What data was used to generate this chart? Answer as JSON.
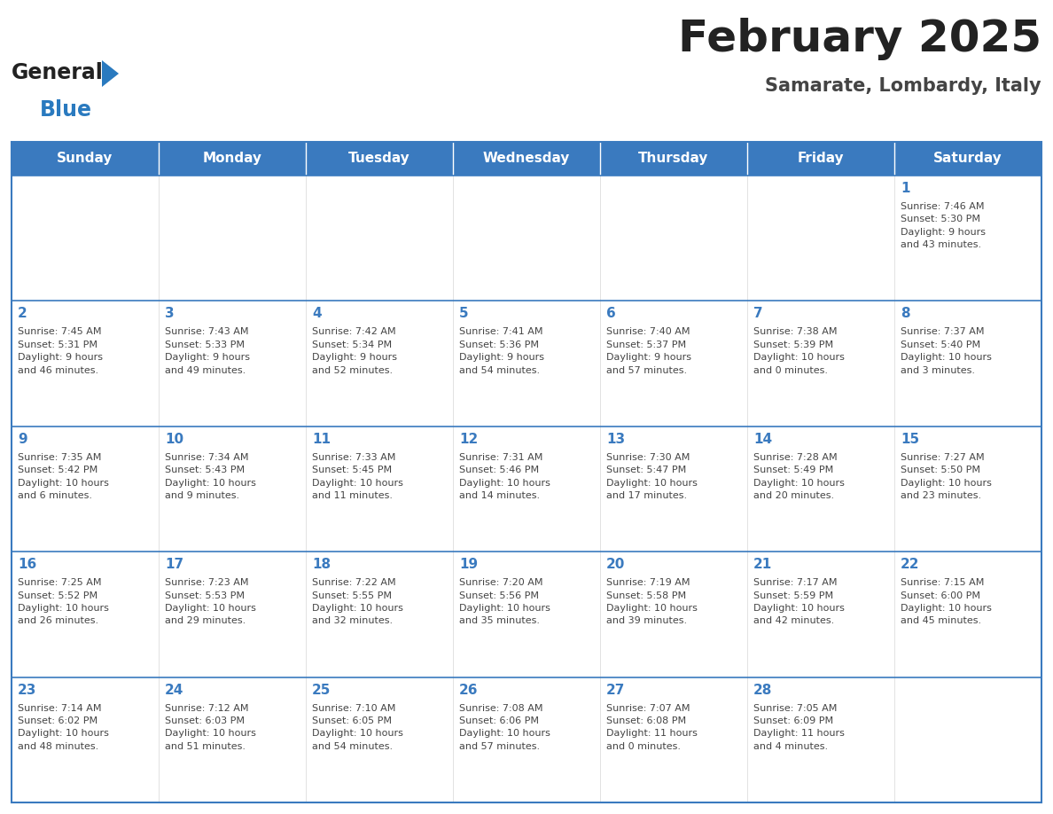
{
  "title": "February 2025",
  "subtitle": "Samarate, Lombardy, Italy",
  "days_of_week": [
    "Sunday",
    "Monday",
    "Tuesday",
    "Wednesday",
    "Thursday",
    "Friday",
    "Saturday"
  ],
  "header_bg": "#3a7abf",
  "header_text": "#ffffff",
  "cell_bg": "#ffffff",
  "border_color": "#3a7abf",
  "row_line_color": "#3a7abf",
  "text_color": "#444444",
  "day_number_color": "#3a7abf",
  "title_color": "#222222",
  "subtitle_color": "#444444",
  "logo_general_color": "#222222",
  "logo_blue_color": "#2a7abf",
  "calendar_data": [
    [
      {
        "day": null,
        "info": null
      },
      {
        "day": null,
        "info": null
      },
      {
        "day": null,
        "info": null
      },
      {
        "day": null,
        "info": null
      },
      {
        "day": null,
        "info": null
      },
      {
        "day": null,
        "info": null
      },
      {
        "day": 1,
        "info": "Sunrise: 7:46 AM\nSunset: 5:30 PM\nDaylight: 9 hours\nand 43 minutes."
      }
    ],
    [
      {
        "day": 2,
        "info": "Sunrise: 7:45 AM\nSunset: 5:31 PM\nDaylight: 9 hours\nand 46 minutes."
      },
      {
        "day": 3,
        "info": "Sunrise: 7:43 AM\nSunset: 5:33 PM\nDaylight: 9 hours\nand 49 minutes."
      },
      {
        "day": 4,
        "info": "Sunrise: 7:42 AM\nSunset: 5:34 PM\nDaylight: 9 hours\nand 52 minutes."
      },
      {
        "day": 5,
        "info": "Sunrise: 7:41 AM\nSunset: 5:36 PM\nDaylight: 9 hours\nand 54 minutes."
      },
      {
        "day": 6,
        "info": "Sunrise: 7:40 AM\nSunset: 5:37 PM\nDaylight: 9 hours\nand 57 minutes."
      },
      {
        "day": 7,
        "info": "Sunrise: 7:38 AM\nSunset: 5:39 PM\nDaylight: 10 hours\nand 0 minutes."
      },
      {
        "day": 8,
        "info": "Sunrise: 7:37 AM\nSunset: 5:40 PM\nDaylight: 10 hours\nand 3 minutes."
      }
    ],
    [
      {
        "day": 9,
        "info": "Sunrise: 7:35 AM\nSunset: 5:42 PM\nDaylight: 10 hours\nand 6 minutes."
      },
      {
        "day": 10,
        "info": "Sunrise: 7:34 AM\nSunset: 5:43 PM\nDaylight: 10 hours\nand 9 minutes."
      },
      {
        "day": 11,
        "info": "Sunrise: 7:33 AM\nSunset: 5:45 PM\nDaylight: 10 hours\nand 11 minutes."
      },
      {
        "day": 12,
        "info": "Sunrise: 7:31 AM\nSunset: 5:46 PM\nDaylight: 10 hours\nand 14 minutes."
      },
      {
        "day": 13,
        "info": "Sunrise: 7:30 AM\nSunset: 5:47 PM\nDaylight: 10 hours\nand 17 minutes."
      },
      {
        "day": 14,
        "info": "Sunrise: 7:28 AM\nSunset: 5:49 PM\nDaylight: 10 hours\nand 20 minutes."
      },
      {
        "day": 15,
        "info": "Sunrise: 7:27 AM\nSunset: 5:50 PM\nDaylight: 10 hours\nand 23 minutes."
      }
    ],
    [
      {
        "day": 16,
        "info": "Sunrise: 7:25 AM\nSunset: 5:52 PM\nDaylight: 10 hours\nand 26 minutes."
      },
      {
        "day": 17,
        "info": "Sunrise: 7:23 AM\nSunset: 5:53 PM\nDaylight: 10 hours\nand 29 minutes."
      },
      {
        "day": 18,
        "info": "Sunrise: 7:22 AM\nSunset: 5:55 PM\nDaylight: 10 hours\nand 32 minutes."
      },
      {
        "day": 19,
        "info": "Sunrise: 7:20 AM\nSunset: 5:56 PM\nDaylight: 10 hours\nand 35 minutes."
      },
      {
        "day": 20,
        "info": "Sunrise: 7:19 AM\nSunset: 5:58 PM\nDaylight: 10 hours\nand 39 minutes."
      },
      {
        "day": 21,
        "info": "Sunrise: 7:17 AM\nSunset: 5:59 PM\nDaylight: 10 hours\nand 42 minutes."
      },
      {
        "day": 22,
        "info": "Sunrise: 7:15 AM\nSunset: 6:00 PM\nDaylight: 10 hours\nand 45 minutes."
      }
    ],
    [
      {
        "day": 23,
        "info": "Sunrise: 7:14 AM\nSunset: 6:02 PM\nDaylight: 10 hours\nand 48 minutes."
      },
      {
        "day": 24,
        "info": "Sunrise: 7:12 AM\nSunset: 6:03 PM\nDaylight: 10 hours\nand 51 minutes."
      },
      {
        "day": 25,
        "info": "Sunrise: 7:10 AM\nSunset: 6:05 PM\nDaylight: 10 hours\nand 54 minutes."
      },
      {
        "day": 26,
        "info": "Sunrise: 7:08 AM\nSunset: 6:06 PM\nDaylight: 10 hours\nand 57 minutes."
      },
      {
        "day": 27,
        "info": "Sunrise: 7:07 AM\nSunset: 6:08 PM\nDaylight: 11 hours\nand 0 minutes."
      },
      {
        "day": 28,
        "info": "Sunrise: 7:05 AM\nSunset: 6:09 PM\nDaylight: 11 hours\nand 4 minutes."
      },
      {
        "day": null,
        "info": null
      }
    ]
  ]
}
